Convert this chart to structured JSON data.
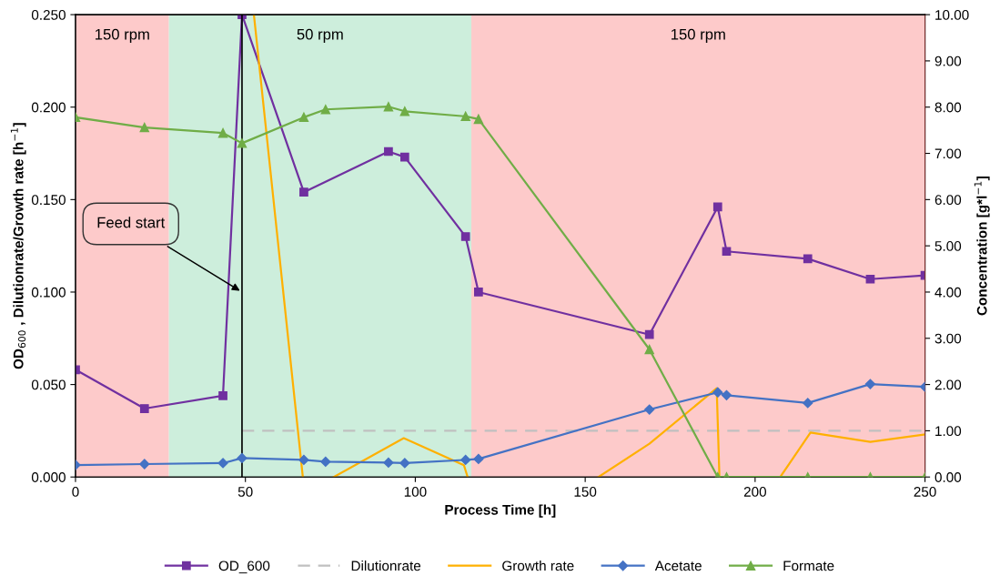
{
  "chart_data": {
    "type": "line",
    "xlabel": "Process Time [h]",
    "ylabel": "OD$_{600}$ , Dilutionrate/Growth rate [h$^{−1}$]",
    "y2label": "Concentration [g*l$^{−1}$]",
    "xlim": [
      0,
      250
    ],
    "xticks": [
      0,
      50,
      100,
      150,
      200,
      250
    ],
    "ylim": [
      0,
      0.25
    ],
    "yticks": [
      {
        "value": 0,
        "label": "0.000"
      },
      {
        "value": 0.05,
        "label": "0.050"
      },
      {
        "value": 0.1,
        "label": "0.100"
      },
      {
        "value": 0.15,
        "label": "0.150"
      },
      {
        "value": 0.2,
        "label": "0.200"
      },
      {
        "value": 0.25,
        "label": "0.250"
      }
    ],
    "y2lim": [
      0,
      10
    ],
    "y2ticks": [
      {
        "value": 0,
        "label": "0.00"
      },
      {
        "value": 1,
        "label": "1.00"
      },
      {
        "value": 2,
        "label": "2.00"
      },
      {
        "value": 3,
        "label": "3.00"
      },
      {
        "value": 4,
        "label": "4.00"
      },
      {
        "value": 5,
        "label": "5.00"
      },
      {
        "value": 6,
        "label": "6.00"
      },
      {
        "value": 7,
        "label": "7.00"
      },
      {
        "value": 8,
        "label": "8.00"
      },
      {
        "value": 9,
        "label": "9.00"
      },
      {
        "value": 10,
        "label": "10.00"
      }
    ],
    "grid": false,
    "legend": "bottom",
    "bands": [
      {
        "axis": "x",
        "from": 0,
        "to": 27.5,
        "label": "150 rpm",
        "color": "#fdcaca"
      },
      {
        "axis": "x",
        "from": 27.5,
        "to": 116.5,
        "label": "50 rpm",
        "color": "#cdeedc"
      },
      {
        "axis": "x",
        "from": 116.5,
        "to": 250,
        "label": "150 rpm",
        "color": "#fdcaca"
      }
    ],
    "ref_lines": [
      {
        "axis": "x",
        "value": 49,
        "color": "#000000",
        "line_style": "solid"
      }
    ],
    "annotations": [
      {
        "text": "Feed start",
        "x": 49,
        "y": 0.1
      }
    ],
    "series": [
      {
        "name": "OD_600",
        "color": "#7030a0",
        "marker": "square",
        "x": [
          0,
          20.3,
          43.4,
          49,
          67.2,
          92.1,
          96.9,
          114.8,
          118.6,
          168.9,
          189,
          191.6,
          215.5,
          233.9,
          250
        ],
        "values": [
          0.058,
          0.037,
          0.044,
          0.25,
          0.154,
          0.176,
          0.173,
          0.13,
          0.1,
          0.077,
          0.146,
          0.122,
          0.118,
          0.107,
          0.109
        ]
      },
      {
        "name": "Dilutionrate",
        "color": "#c0c0c0",
        "marker": "none",
        "line_style": "dashed",
        "x": [
          49,
          250
        ],
        "values": [
          0.025,
          0.025
        ]
      },
      {
        "name": "Growth rate",
        "color": "#ffb000",
        "marker": "none",
        "x": [
          52.5,
          66.9,
          70,
          76,
          96.6,
          114.3,
          115.4,
          135,
          153.9,
          168.9,
          188.7,
          189.5,
          198,
          207.4,
          216.3,
          233.9,
          250
        ],
        "values": [
          0.25,
          0,
          null,
          0,
          0.021,
          0.0064,
          0,
          null,
          0,
          0.018,
          0.048,
          0,
          null,
          0,
          0.024,
          0.019,
          0.023
        ]
      },
      {
        "name": "Acetate",
        "color": "#4472c4",
        "marker": "diamond",
        "axis": "y2",
        "x": [
          0,
          20.3,
          43.4,
          49,
          67.2,
          73.6,
          92.1,
          96.9,
          114.8,
          118.6,
          168.9,
          189,
          191.6,
          215.5,
          233.9,
          250
        ],
        "values": [
          0.26,
          0.28,
          0.3,
          0.41,
          0.37,
          0.33,
          0.31,
          0.3,
          0.37,
          0.39,
          1.46,
          1.83,
          1.77,
          1.6,
          2.01,
          1.95
        ]
      },
      {
        "name": "Formate",
        "color": "#70ad47",
        "marker": "triangle",
        "axis": "y2",
        "x": [
          0,
          20.3,
          43.4,
          49,
          67.2,
          73.6,
          92.1,
          96.9,
          114.8,
          118.6,
          168.9,
          189,
          191.6,
          215.5,
          233.9,
          250
        ],
        "values": [
          7.78,
          7.56,
          7.44,
          7.22,
          7.78,
          7.95,
          8.01,
          7.91,
          7.8,
          7.74,
          2.76,
          0,
          0,
          0,
          0,
          0
        ]
      }
    ]
  }
}
